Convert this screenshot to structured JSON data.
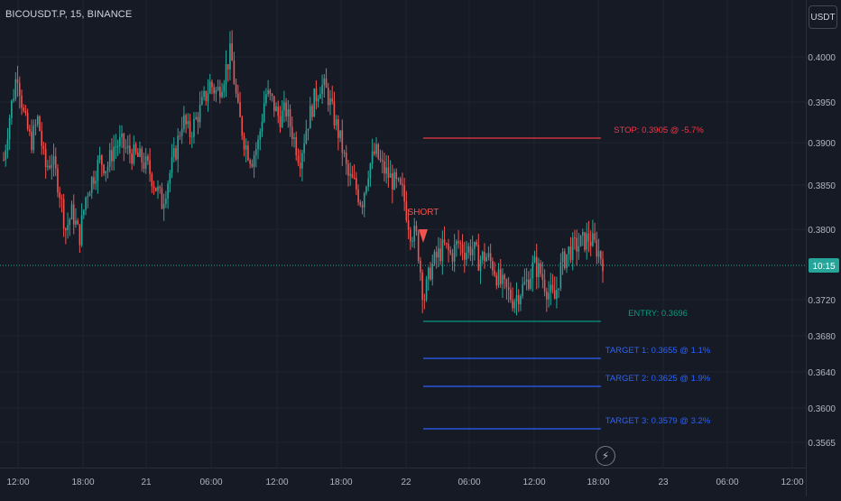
{
  "header": {
    "symbol_title": "BICOUSDT.P, 15, BINANCE",
    "currency_button": "USDT"
  },
  "toolbar": {
    "lightning_icon": "lightning-icon"
  },
  "chart_data": {
    "type": "candlestick",
    "title": "BICOUSDT.P, 15, BINANCE",
    "price_axis": {
      "unit": "USDT",
      "ticks": [
        "0.4000",
        "0.3950",
        "0.3900",
        "0.3850",
        "0.3800",
        "0.3720",
        "0.3680",
        "0.3640",
        "0.3600",
        "0.3565"
      ]
    },
    "time_axis": {
      "ticks": [
        "12:00",
        "18:00",
        "21",
        "06:00",
        "12:00",
        "18:00",
        "22",
        "06:00",
        "12:00",
        "18:00",
        "23",
        "06:00",
        "12:00"
      ]
    },
    "current_price_label": "10:15",
    "colors": {
      "up": "#26a69a",
      "down": "#ef5350",
      "target": "#2962ff",
      "stop": "#f23645",
      "entry": "#089981"
    },
    "signal": {
      "label": "SHORT",
      "direction": "down"
    },
    "levels": [
      {
        "key": "stop",
        "label": "STOP: 0.3905 @ -5.7%"
      },
      {
        "key": "entry",
        "label": "ENTRY: 0.3696"
      },
      {
        "key": "target1",
        "label": "TARGET 1: 0.3655 @ 1.1%"
      },
      {
        "key": "target2",
        "label": "TARGET 2: 0.3625 @ 1.9%"
      },
      {
        "key": "target3",
        "label": "TARGET 3: 0.3579 @ 3.2%"
      }
    ],
    "path": [
      0.388,
      0.394,
      0.3985,
      0.393,
      0.39,
      0.393,
      0.387,
      0.388,
      0.385,
      0.38,
      0.382,
      0.379,
      0.384,
      0.386,
      0.388,
      0.387,
      0.3895,
      0.39,
      0.389,
      0.3885,
      0.388,
      0.387,
      0.385,
      0.383,
      0.386,
      0.389,
      0.393,
      0.391,
      0.393,
      0.395,
      0.397,
      0.396,
      0.398,
      0.4005,
      0.394,
      0.39,
      0.388,
      0.39,
      0.396,
      0.395,
      0.393,
      0.394,
      0.391,
      0.388,
      0.392,
      0.395,
      0.397,
      0.396,
      0.393,
      0.39,
      0.386,
      0.385,
      0.383,
      0.387,
      0.389,
      0.387,
      0.386,
      0.385,
      0.384,
      0.38,
      0.379,
      0.372,
      0.3755,
      0.377,
      0.378,
      0.377,
      0.3785,
      0.3775,
      0.378,
      0.3765,
      0.377,
      0.376,
      0.374,
      0.373,
      0.372,
      0.373,
      0.374,
      0.376,
      0.375,
      0.373,
      0.372,
      0.376,
      0.3775,
      0.378,
      0.3785,
      0.379,
      0.378,
      0.3765
    ]
  }
}
